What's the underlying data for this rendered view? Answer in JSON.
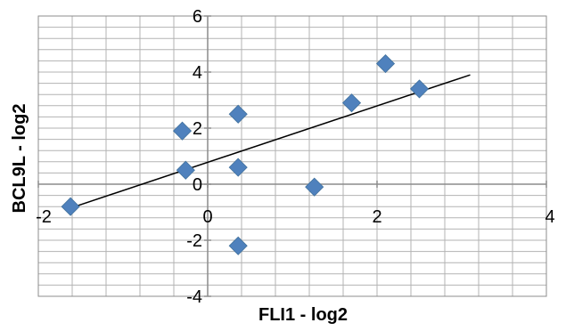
{
  "chart_data": {
    "type": "scatter",
    "xlabel": "FLI1 - log2",
    "ylabel": "BCL9L - log2",
    "xlim": [
      -2,
      4
    ],
    "ylim": [
      -4,
      6
    ],
    "x_ticks": [
      "-2",
      "0",
      "2",
      "4"
    ],
    "y_ticks": [
      "-4",
      "-2",
      "0",
      "2",
      "4",
      "6"
    ],
    "grid": true,
    "marker_color": "#4F81BD",
    "trendline_color": "#000000",
    "series": [
      {
        "points": [
          {
            "x": -1.62,
            "y": -0.8
          },
          {
            "x": -0.3,
            "y": 1.9
          },
          {
            "x": -0.26,
            "y": 0.5
          },
          {
            "x": 0.36,
            "y": 2.5
          },
          {
            "x": 0.36,
            "y": 0.6
          },
          {
            "x": 0.36,
            "y": -2.2
          },
          {
            "x": 1.26,
            "y": -0.1
          },
          {
            "x": 1.7,
            "y": 2.9
          },
          {
            "x": 2.1,
            "y": 4.3
          },
          {
            "x": 2.5,
            "y": 3.4
          }
        ]
      }
    ],
    "trendline": {
      "x": [
        -1.62,
        3.1
      ],
      "y": [
        -0.85,
        3.9
      ]
    }
  }
}
